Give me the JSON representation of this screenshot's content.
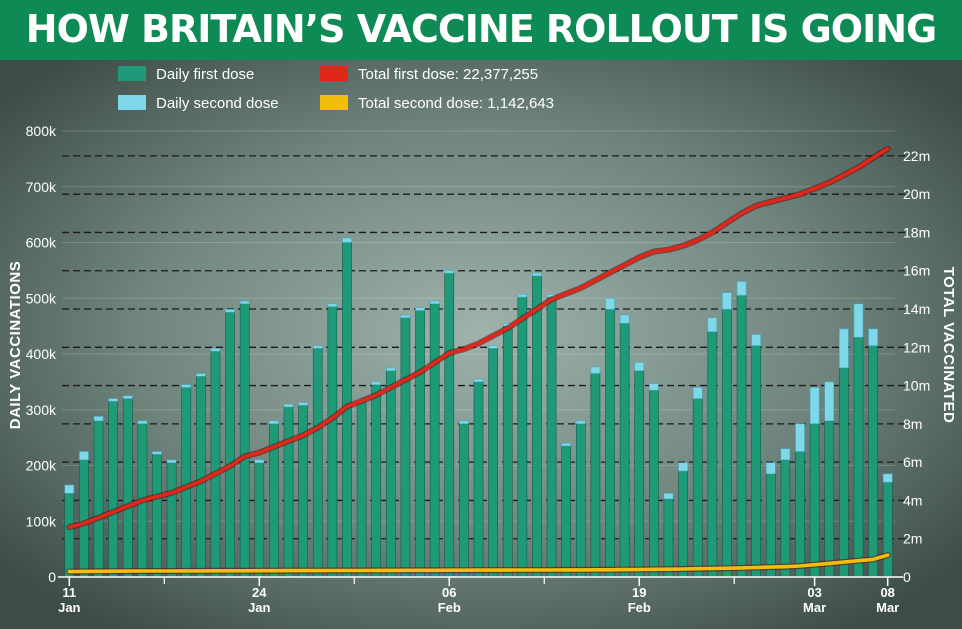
{
  "title": "HOW BRITAIN’S VACCINE ROLLOUT IS GOING",
  "colors": {
    "title_bg": "#0e8a55",
    "first_dose_bar": "#1f9a78",
    "second_dose_bar": "#7fd8ea",
    "total_first_line": "#e3261b",
    "total_second_line": "#f2bd0c"
  },
  "chart_data": {
    "type": "bar",
    "title": "HOW BRITAIN’S VACCINE ROLLOUT IS GOING",
    "ylabel_left": "DAILY VACCINATIONS",
    "ylabel_right": "TOTAL VACCINATED",
    "ylim_left": [
      0,
      800000
    ],
    "ylim_right": [
      0,
      23300000
    ],
    "left_ticks": [
      "0",
      "100k",
      "200k",
      "300k",
      "400k",
      "500k",
      "600k",
      "700k",
      "800k"
    ],
    "left_tick_values": [
      0,
      100000,
      200000,
      300000,
      400000,
      500000,
      600000,
      700000,
      800000
    ],
    "right_ticks": [
      "0",
      "2m",
      "4m",
      "6m",
      "8m",
      "10m",
      "12m",
      "14m",
      "16m",
      "18m",
      "20m",
      "22m"
    ],
    "right_tick_values": [
      0,
      2000000,
      4000000,
      6000000,
      8000000,
      10000000,
      12000000,
      14000000,
      16000000,
      18000000,
      20000000,
      22000000
    ],
    "grid": true,
    "legend": [
      {
        "label": "Daily first dose",
        "kind": "bar"
      },
      {
        "label": "Daily second dose",
        "kind": "bar"
      },
      {
        "label": "Total first dose:  22,377,255",
        "kind": "line"
      },
      {
        "label": "Total second dose: 1,142,643",
        "kind": "line"
      }
    ],
    "x_date_labels": [
      {
        "day": "11",
        "month": "Jan",
        "index": 0
      },
      {
        "day": "24",
        "month": "Jan",
        "index": 13
      },
      {
        "day": "06",
        "month": "Feb",
        "index": 26
      },
      {
        "day": "19",
        "month": "Feb",
        "index": 39
      },
      {
        "day": "03",
        "month": "Mar",
        "index": 51
      },
      {
        "day": "08",
        "month": "Mar",
        "index": 56
      }
    ],
    "categories": [
      "11 Jan",
      "12 Jan",
      "13 Jan",
      "14 Jan",
      "15 Jan",
      "16 Jan",
      "17 Jan",
      "18 Jan",
      "19 Jan",
      "20 Jan",
      "21 Jan",
      "22 Jan",
      "23 Jan",
      "24 Jan",
      "25 Jan",
      "26 Jan",
      "27 Jan",
      "28 Jan",
      "29 Jan",
      "30 Jan",
      "31 Jan",
      "01 Feb",
      "02 Feb",
      "03 Feb",
      "04 Feb",
      "05 Feb",
      "06 Feb",
      "07 Feb",
      "08 Feb",
      "09 Feb",
      "10 Feb",
      "11 Feb",
      "12 Feb",
      "13 Feb",
      "14 Feb",
      "15 Feb",
      "16 Feb",
      "17 Feb",
      "18 Feb",
      "19 Feb",
      "20 Feb",
      "21 Feb",
      "22 Feb",
      "23 Feb",
      "24 Feb",
      "25 Feb",
      "26 Feb",
      "27 Feb",
      "28 Feb",
      "01 Mar",
      "02 Mar",
      "03 Mar",
      "04 Mar",
      "05 Mar",
      "06 Mar",
      "07 Mar",
      "08 Mar"
    ],
    "series": [
      {
        "name": "Daily first dose",
        "type": "bar",
        "values": [
          150000,
          210000,
          280000,
          315000,
          320000,
          275000,
          220000,
          205000,
          340000,
          360000,
          405000,
          475000,
          490000,
          205000,
          275000,
          305000,
          308000,
          410000,
          485000,
          600000,
          315000,
          345000,
          370000,
          465000,
          478000,
          490000,
          545000,
          275000,
          350000,
          410000,
          450000,
          502000,
          540000,
          502000,
          235000,
          275000,
          365000,
          480000,
          455000,
          370000,
          335000,
          140000,
          190000,
          320000,
          440000,
          480000,
          505000,
          415000,
          185000,
          210000,
          225000,
          275000,
          280000,
          375000,
          430000,
          415000,
          170000
        ]
      },
      {
        "name": "Daily second dose",
        "type": "bar",
        "values": [
          15000,
          15000,
          8000,
          5000,
          5000,
          5000,
          5000,
          5000,
          5000,
          5000,
          5000,
          5000,
          5000,
          5000,
          5000,
          5000,
          5000,
          5000,
          5000,
          8000,
          5000,
          5000,
          5000,
          5000,
          5000,
          5000,
          5000,
          5000,
          5000,
          5000,
          5000,
          5000,
          5000,
          5000,
          5000,
          5000,
          12000,
          20000,
          15000,
          15000,
          12000,
          10000,
          15000,
          20000,
          25000,
          30000,
          25000,
          20000,
          20000,
          20000,
          50000,
          65000,
          70000,
          70000,
          60000,
          30000,
          15000
        ]
      },
      {
        "name": "Total first dose:  22,377,255",
        "type": "line",
        "values": [
          2600000,
          2800000,
          3100000,
          3400000,
          3700000,
          4000000,
          4200000,
          4400000,
          4700000,
          5000000,
          5400000,
          5800000,
          6300000,
          6500000,
          6800000,
          7100000,
          7400000,
          7800000,
          8300000,
          8900000,
          9200000,
          9500000,
          9900000,
          10300000,
          10700000,
          11200000,
          11700000,
          11900000,
          12200000,
          12600000,
          13000000,
          13500000,
          14000000,
          14500000,
          14800000,
          15100000,
          15500000,
          15900000,
          16300000,
          16700000,
          17000000,
          17100000,
          17300000,
          17600000,
          18000000,
          18500000,
          19000000,
          19400000,
          19600000,
          19800000,
          20000000,
          20300000,
          20600000,
          21000000,
          21400000,
          21900000,
          22377255
        ]
      },
      {
        "name": "Total second dose: 1,142,643",
        "type": "line",
        "values": [
          280000,
          290000,
          300000,
          305000,
          310000,
          312000,
          314000,
          316000,
          318000,
          320000,
          322000,
          324000,
          326000,
          328000,
          330000,
          332000,
          334000,
          336000,
          338000,
          340000,
          342000,
          344000,
          346000,
          348000,
          350000,
          352000,
          354000,
          356000,
          358000,
          360000,
          362000,
          364000,
          366000,
          368000,
          370000,
          372000,
          374000,
          378000,
          385000,
          392000,
          400000,
          410000,
          420000,
          432000,
          445000,
          460000,
          478000,
          496000,
          515000,
          540000,
          575000,
          640000,
          710000,
          780000,
          850000,
          920000,
          1142643
        ]
      }
    ]
  }
}
